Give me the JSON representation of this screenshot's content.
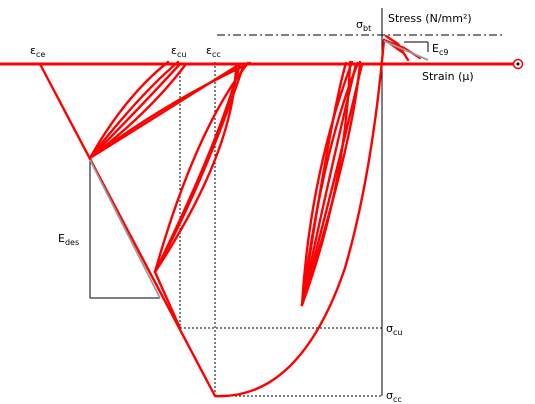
{
  "colors": {
    "curve": "#ff0000",
    "guide": "#000000",
    "tangent": "#9a9a9a",
    "background": "#ffffff"
  },
  "labels": {
    "stress_axis": "Stress (N/mm²)",
    "strain_axis": "Strain (μ)",
    "sigma_bt": {
      "main": "σ",
      "sub": "bt"
    },
    "sigma_cu": {
      "main": "σ",
      "sub": "cu"
    },
    "sigma_cc": {
      "main": "σ",
      "sub": "cc"
    },
    "eps_ce": {
      "main": "ε",
      "sub": "ce"
    },
    "eps_cu": {
      "main": "ε",
      "sub": "cu"
    },
    "eps_cc": {
      "main": "ε",
      "sub": "cc"
    },
    "E_des": {
      "main": "E",
      "sub": "des"
    },
    "E_c9": {
      "main": "E",
      "sub": "c9"
    }
  },
  "icons": {
    "axis_end": "circle-dot-icon"
  }
}
